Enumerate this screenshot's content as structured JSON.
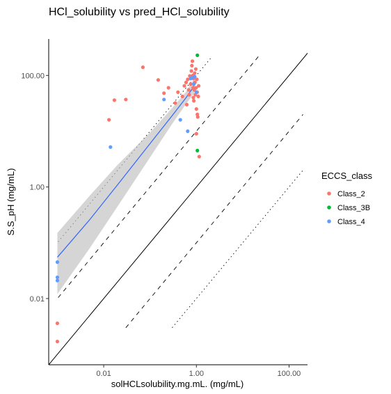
{
  "chart_data": {
    "type": "scatter",
    "title": "HCl_solubility vs pred_HCl_solubility",
    "xlabel": "solHCLsolubility.mg.mL. (mg/mL)",
    "ylabel": "S.S_pH (mg/mL)",
    "x_scale": "log10",
    "y_scale": "log10",
    "xlim": [
      0.00065,
      250
    ],
    "ylim": [
      0.00065,
      450
    ],
    "x_ticks": [
      {
        "value": 0.01,
        "label": "0.01"
      },
      {
        "value": 1,
        "label": "1.00"
      },
      {
        "value": 100,
        "label": "100.00"
      }
    ],
    "y_ticks": [
      {
        "value": 0.01,
        "label": "0.01"
      },
      {
        "value": 1,
        "label": "1.00"
      },
      {
        "value": 100,
        "label": "100.00"
      }
    ],
    "grid": false,
    "legend": {
      "title": "ECCS_class",
      "position": "right",
      "entries": [
        {
          "label": "Class_2",
          "color": "#F8766D"
        },
        {
          "label": "Class_3B",
          "color": "#00BA38"
        },
        {
          "label": "Class_4",
          "color": "#619CFF"
        }
      ]
    },
    "reference_lines": [
      {
        "style": "solid",
        "ratio": 1
      },
      {
        "style": "dashed",
        "ratio": 10
      },
      {
        "style": "dashed",
        "ratio": 0.1
      },
      {
        "style": "dotted",
        "ratio": 100
      },
      {
        "style": "dotted",
        "ratio": 0.01
      }
    ],
    "series": [
      {
        "name": "Class_2",
        "color": "#F8766D",
        "points": [
          [
            0.001,
            0.0036
          ],
          [
            0.001,
            0.0017
          ],
          [
            0.013,
            16
          ],
          [
            0.017,
            36
          ],
          [
            0.03,
            37
          ],
          [
            0.07,
            140
          ],
          [
            0.15,
            83
          ],
          [
            0.2,
            48
          ],
          [
            0.25,
            60
          ],
          [
            0.35,
            32
          ],
          [
            0.4,
            50
          ],
          [
            0.5,
            42
          ],
          [
            0.55,
            65
          ],
          [
            0.6,
            75
          ],
          [
            0.62,
            30
          ],
          [
            0.65,
            85
          ],
          [
            0.68,
            55
          ],
          [
            0.7,
            45
          ],
          [
            0.72,
            98
          ],
          [
            0.75,
            70
          ],
          [
            0.78,
            120
          ],
          [
            0.8,
            150
          ],
          [
            0.82,
            180
          ],
          [
            0.84,
            100
          ],
          [
            0.85,
            60
          ],
          [
            0.86,
            40
          ],
          [
            0.87,
            88
          ],
          [
            0.88,
            35
          ],
          [
            0.9,
            55
          ],
          [
            0.92,
            110
          ],
          [
            0.93,
            75
          ],
          [
            0.95,
            45
          ],
          [
            0.97,
            130
          ],
          [
            0.98,
            60
          ],
          [
            1.0,
            25
          ],
          [
            1.02,
            85
          ],
          [
            1.04,
            50
          ],
          [
            1.05,
            20
          ],
          [
            1.07,
            18
          ],
          [
            1.1,
            42
          ],
          [
            1.12,
            65
          ],
          [
            1.15,
            3.5
          ],
          [
            1.0,
            9
          ]
        ]
      },
      {
        "name": "Class_3B",
        "color": "#00BA38",
        "points": [
          [
            1.05,
            230
          ],
          [
            1.05,
            4.5
          ]
        ]
      },
      {
        "name": "Class_4",
        "color": "#619CFF",
        "points": [
          [
            0.001,
            0.045
          ],
          [
            0.001,
            0.024
          ],
          [
            0.001,
            0.021
          ],
          [
            0.014,
            5.2
          ],
          [
            0.2,
            37
          ],
          [
            0.45,
            16
          ],
          [
            0.65,
            10
          ],
          [
            0.75,
            88
          ],
          [
            0.8,
            90
          ],
          [
            0.88,
            70
          ],
          [
            0.92,
            95
          ],
          [
            1.0,
            50
          ]
        ]
      }
    ],
    "fit": {
      "color": "#3366FF",
      "band_color": "#BEBEBE",
      "x": [
        0.001,
        0.005,
        0.02,
        0.1,
        0.3,
        0.6,
        0.9
      ],
      "y": [
        0.055,
        0.26,
        1.1,
        6.0,
        19,
        40,
        65
      ],
      "ymin": [
        0.012,
        0.08,
        0.45,
        3.4,
        13.5,
        31,
        48
      ],
      "ymax": [
        0.15,
        0.7,
        2.5,
        9.5,
        26,
        51,
        88
      ]
    }
  }
}
